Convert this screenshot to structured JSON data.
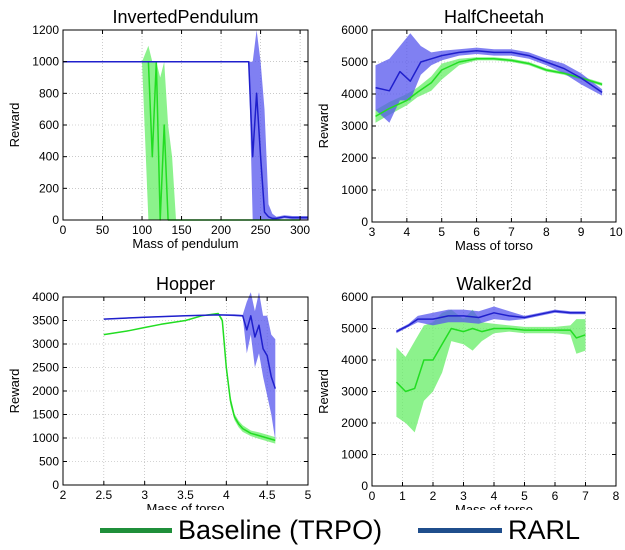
{
  "colors": {
    "baseline": "#22dd22",
    "baseline_band": "#66ee66",
    "rarl": "#1f1fcc",
    "rarl_band": "#5555ee",
    "legend_baseline": "#1f8f3a",
    "legend_rarl": "#1f4e8c",
    "grid": "#aaaaaa"
  },
  "legend": {
    "items": [
      {
        "label": "Baseline (TRPO)"
      },
      {
        "label": "RARL"
      }
    ]
  },
  "chart_data": [
    {
      "type": "line",
      "title": "InvertedPendulum",
      "xlabel": "Mass of pendulum",
      "ylabel": "Reward",
      "xlim": [
        0,
        310
      ],
      "ylim": [
        0,
        1200
      ],
      "xticks": [
        0,
        50,
        100,
        150,
        200,
        250,
        300
      ],
      "yticks": [
        0,
        200,
        400,
        600,
        800,
        1000,
        1200
      ],
      "grid": true,
      "series": [
        {
          "name": "Baseline (TRPO)",
          "x": [
            0,
            100,
            108,
            113,
            118,
            123,
            128,
            133,
            138,
            143,
            150,
            200,
            250,
            300
          ],
          "values": [
            1000,
            1000,
            1000,
            400,
            1000,
            0,
            600,
            0,
            0,
            0,
            0,
            0,
            0,
            0
          ],
          "lower": [
            1000,
            1000,
            0,
            0,
            0,
            0,
            0,
            0,
            0,
            0,
            0,
            0,
            0,
            0
          ],
          "upper": [
            1000,
            1000,
            1100,
            1000,
            1000,
            900,
            1000,
            600,
            400,
            0,
            0,
            0,
            0,
            0
          ]
        },
        {
          "name": "RARL",
          "x": [
            0,
            100,
            200,
            235,
            240,
            245,
            250,
            255,
            260,
            265,
            270,
            280,
            290,
            300,
            310
          ],
          "values": [
            1000,
            1000,
            1000,
            1000,
            400,
            800,
            400,
            50,
            20,
            10,
            10,
            20,
            15,
            15,
            15
          ],
          "lower": [
            1000,
            1000,
            1000,
            1000,
            0,
            0,
            0,
            0,
            0,
            0,
            0,
            10,
            5,
            5,
            5
          ],
          "upper": [
            1000,
            1000,
            1000,
            1000,
            1000,
            1200,
            1000,
            700,
            100,
            40,
            20,
            30,
            25,
            25,
            25
          ]
        }
      ]
    },
    {
      "type": "line",
      "title": "HalfCheetah",
      "xlabel": "Mass of torso",
      "ylabel": "Reward",
      "xlim": [
        3,
        10
      ],
      "ylim": [
        0,
        6000
      ],
      "xticks": [
        3,
        4,
        5,
        6,
        7,
        8,
        9,
        10
      ],
      "yticks": [
        0,
        1000,
        2000,
        3000,
        4000,
        5000,
        6000
      ],
      "grid": true,
      "series": [
        {
          "name": "Baseline (TRPO)",
          "x": [
            3.1,
            3.5,
            4.0,
            4.3,
            4.7,
            5.0,
            5.5,
            6.0,
            6.5,
            7.0,
            7.5,
            8.0,
            8.5,
            9.0,
            9.6
          ],
          "values": [
            3300,
            3550,
            3800,
            4050,
            4350,
            4750,
            5000,
            5100,
            5100,
            5050,
            4950,
            4750,
            4650,
            4500,
            4300
          ],
          "lower": [
            3100,
            3350,
            3650,
            3900,
            4100,
            4450,
            4900,
            5050,
            5050,
            5000,
            4900,
            4700,
            4600,
            4450,
            4250
          ],
          "upper": [
            3500,
            3750,
            4000,
            4200,
            4550,
            4950,
            5100,
            5150,
            5150,
            5100,
            5000,
            4800,
            4700,
            4550,
            4350
          ]
        },
        {
          "name": "RARL",
          "x": [
            3.1,
            3.5,
            3.8,
            4.1,
            4.4,
            4.7,
            5.0,
            5.5,
            6.0,
            6.5,
            7.0,
            7.5,
            8.0,
            8.5,
            9.0,
            9.6
          ],
          "values": [
            4200,
            4100,
            4700,
            4400,
            5000,
            5100,
            5200,
            5300,
            5350,
            5300,
            5300,
            5200,
            5000,
            4800,
            4500,
            4050
          ],
          "lower": [
            3500,
            3100,
            3800,
            3800,
            4600,
            4900,
            5050,
            5200,
            5250,
            5200,
            5200,
            5100,
            4900,
            4650,
            4300,
            3950
          ],
          "upper": [
            4900,
            5100,
            5500,
            5900,
            5500,
            5300,
            5350,
            5400,
            5450,
            5400,
            5400,
            5300,
            5100,
            4950,
            4650,
            4150
          ]
        }
      ]
    },
    {
      "type": "line",
      "title": "Hopper",
      "xlabel": "Mass of torso",
      "ylabel": "Reward",
      "xlim": [
        2.0,
        5.0
      ],
      "ylim": [
        0,
        4000
      ],
      "xticks": [
        2.0,
        2.5,
        3.0,
        3.5,
        4.0,
        4.5,
        5.0
      ],
      "yticks": [
        0,
        500,
        1000,
        1500,
        2000,
        2500,
        3000,
        3500,
        4000
      ],
      "grid": true,
      "series": [
        {
          "name": "Baseline (TRPO)",
          "x": [
            2.5,
            2.8,
            3.0,
            3.2,
            3.5,
            3.7,
            3.9,
            3.95,
            4.0,
            4.05,
            4.1,
            4.15,
            4.2,
            4.3,
            4.4,
            4.5,
            4.6
          ],
          "values": [
            3200,
            3280,
            3350,
            3420,
            3500,
            3600,
            3650,
            3500,
            2500,
            1800,
            1450,
            1300,
            1200,
            1100,
            1050,
            1000,
            950
          ],
          "lower": [
            3190,
            3270,
            3340,
            3410,
            3490,
            3590,
            3640,
            3450,
            2400,
            1700,
            1380,
            1230,
            1130,
            1040,
            980,
            930,
            880
          ],
          "upper": [
            3210,
            3290,
            3360,
            3430,
            3510,
            3610,
            3660,
            3550,
            2600,
            1900,
            1520,
            1370,
            1270,
            1160,
            1120,
            1070,
            1020
          ]
        },
        {
          "name": "RARL",
          "x": [
            2.5,
            3.0,
            3.5,
            3.9,
            4.1,
            4.2,
            4.25,
            4.3,
            4.35,
            4.4,
            4.45,
            4.5,
            4.55,
            4.6
          ],
          "values": [
            3530,
            3570,
            3600,
            3620,
            3610,
            3600,
            3300,
            3600,
            3150,
            3400,
            2900,
            2750,
            2300,
            2050
          ],
          "lower": [
            3520,
            3560,
            3590,
            3610,
            3590,
            3580,
            2800,
            3200,
            2500,
            2800,
            2300,
            1900,
            1500,
            950
          ],
          "upper": [
            3540,
            3580,
            3610,
            3630,
            3630,
            3620,
            3900,
            4100,
            3700,
            4100,
            3600,
            3600,
            3200,
            3100
          ]
        }
      ]
    },
    {
      "type": "line",
      "title": "Walker2d",
      "xlabel": "Mass of torso",
      "ylabel": "Reward",
      "xlim": [
        0,
        8
      ],
      "ylim": [
        0,
        6000
      ],
      "xticks": [
        0,
        1,
        2,
        3,
        4,
        5,
        6,
        7,
        8
      ],
      "yticks": [
        0,
        1000,
        2000,
        3000,
        4000,
        5000,
        6000
      ],
      "grid": true,
      "series": [
        {
          "name": "Baseline (TRPO)",
          "x": [
            0.8,
            1.1,
            1.4,
            1.7,
            2.0,
            2.3,
            2.6,
            3.0,
            3.3,
            3.6,
            4.0,
            4.5,
            5.0,
            5.5,
            6.0,
            6.5,
            6.7,
            7.0
          ],
          "values": [
            3300,
            3000,
            3100,
            4000,
            4000,
            4500,
            5000,
            4900,
            5000,
            4900,
            5000,
            5000,
            4950,
            4950,
            4950,
            4950,
            4700,
            4800
          ],
          "lower": [
            2200,
            2000,
            1700,
            2700,
            3000,
            3600,
            4600,
            4500,
            4300,
            4600,
            4850,
            4900,
            4850,
            4850,
            4850,
            4800,
            4200,
            4300
          ],
          "upper": [
            4400,
            4100,
            4600,
            5100,
            5200,
            5500,
            5600,
            5300,
            5600,
            5200,
            5150,
            5100,
            5050,
            5050,
            5050,
            5100,
            5300,
            5300
          ]
        },
        {
          "name": "RARL",
          "x": [
            0.8,
            1.2,
            1.5,
            2.0,
            2.5,
            3.0,
            3.5,
            4.0,
            4.5,
            5.0,
            5.5,
            6.0,
            6.5,
            7.0
          ],
          "values": [
            4900,
            5100,
            5300,
            5300,
            5400,
            5400,
            5350,
            5500,
            5400,
            5350,
            5450,
            5550,
            5500,
            5500
          ],
          "lower": [
            4850,
            5050,
            5200,
            5100,
            5200,
            5200,
            5150,
            5300,
            5250,
            5300,
            5400,
            5500,
            5450,
            5450
          ],
          "upper": [
            4950,
            5150,
            5400,
            5500,
            5600,
            5600,
            5550,
            5700,
            5550,
            5400,
            5500,
            5600,
            5550,
            5550
          ]
        }
      ]
    }
  ]
}
